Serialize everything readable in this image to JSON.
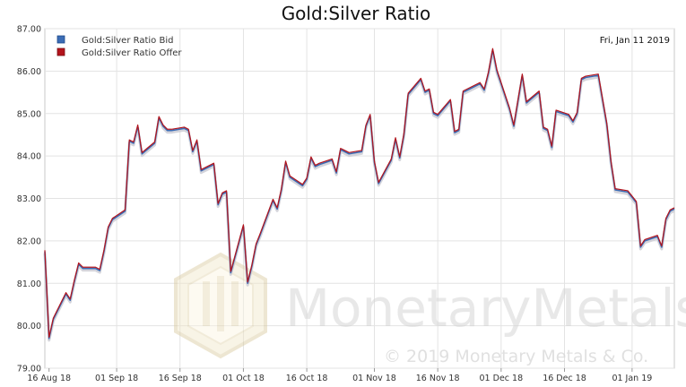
{
  "chart_data": {
    "type": "line",
    "title": "Gold:Silver Ratio",
    "date_label": "Fri, Jan 11 2019",
    "x_ticks": [
      "16 Aug 18",
      "01 Sep 18",
      "16 Sep 18",
      "01 Oct 18",
      "16 Oct 18",
      "01 Nov 18",
      "16 Nov 18",
      "01 Dec 18",
      "16 Dec 18",
      "01 Jan 19"
    ],
    "x_range": [
      "2018-08-15",
      "2019-01-11"
    ],
    "ylim": [
      79.0,
      87.0
    ],
    "y_ticks": [
      "79.00",
      "80.00",
      "81.00",
      "82.00",
      "83.00",
      "84.00",
      "85.00",
      "86.00",
      "87.00"
    ],
    "grid": true,
    "legend_position": "top-left",
    "series": [
      {
        "name": "Gold:Silver Ratio Bid",
        "color": "#3b6cb5",
        "x": [
          "2018-08-15",
          "2018-08-16",
          "2018-08-17",
          "2018-08-20",
          "2018-08-21",
          "2018-08-22",
          "2018-08-23",
          "2018-08-24",
          "2018-08-27",
          "2018-08-28",
          "2018-08-29",
          "2018-08-30",
          "2018-08-31",
          "2018-09-03",
          "2018-09-04",
          "2018-09-05",
          "2018-09-06",
          "2018-09-07",
          "2018-09-10",
          "2018-09-11",
          "2018-09-12",
          "2018-09-13",
          "2018-09-14",
          "2018-09-17",
          "2018-09-18",
          "2018-09-19",
          "2018-09-20",
          "2018-09-21",
          "2018-09-24",
          "2018-09-25",
          "2018-09-26",
          "2018-09-27",
          "2018-09-28",
          "2018-10-01",
          "2018-10-02",
          "2018-10-03",
          "2018-10-04",
          "2018-10-05",
          "2018-10-08",
          "2018-10-09",
          "2018-10-10",
          "2018-10-11",
          "2018-10-12",
          "2018-10-15",
          "2018-10-16",
          "2018-10-17",
          "2018-10-18",
          "2018-10-19",
          "2018-10-22",
          "2018-10-23",
          "2018-10-24",
          "2018-10-25",
          "2018-10-26",
          "2018-10-29",
          "2018-10-30",
          "2018-10-31",
          "2018-11-01",
          "2018-11-02",
          "2018-11-05",
          "2018-11-06",
          "2018-11-07",
          "2018-11-08",
          "2018-11-09",
          "2018-11-12",
          "2018-11-13",
          "2018-11-14",
          "2018-11-15",
          "2018-11-16",
          "2018-11-19",
          "2018-11-20",
          "2018-11-21",
          "2018-11-22",
          "2018-11-23",
          "2018-11-26",
          "2018-11-27",
          "2018-11-28",
          "2018-11-29",
          "2018-11-30",
          "2018-12-03",
          "2018-12-04",
          "2018-12-05",
          "2018-12-06",
          "2018-12-07",
          "2018-12-10",
          "2018-12-11",
          "2018-12-12",
          "2018-12-13",
          "2018-12-14",
          "2018-12-17",
          "2018-12-18",
          "2018-12-19",
          "2018-12-20",
          "2018-12-21",
          "2018-12-24",
          "2018-12-26",
          "2018-12-27",
          "2018-12-28",
          "2018-12-31",
          "2019-01-02",
          "2019-01-03",
          "2019-01-04",
          "2019-01-07",
          "2019-01-08",
          "2019-01-09",
          "2019-01-10",
          "2019-01-11"
        ],
        "values": [
          81.75,
          79.7,
          80.15,
          80.75,
          80.6,
          81.05,
          81.45,
          81.35,
          81.35,
          81.3,
          81.75,
          82.3,
          82.5,
          82.7,
          84.35,
          84.3,
          84.7,
          84.05,
          84.3,
          84.9,
          84.7,
          84.6,
          84.6,
          84.65,
          84.6,
          84.1,
          84.35,
          83.65,
          83.8,
          82.85,
          83.1,
          83.15,
          81.25,
          82.35,
          81.0,
          81.4,
          81.9,
          82.15,
          82.95,
          82.75,
          83.2,
          83.85,
          83.5,
          83.3,
          83.45,
          83.95,
          83.75,
          83.8,
          83.9,
          83.6,
          84.15,
          84.1,
          84.05,
          84.1,
          84.7,
          84.95,
          83.85,
          83.35,
          83.9,
          84.4,
          83.95,
          84.5,
          85.45,
          85.8,
          85.5,
          85.55,
          85.0,
          84.95,
          85.3,
          84.55,
          84.6,
          85.5,
          85.55,
          85.7,
          85.55,
          85.95,
          86.5,
          86.0,
          85.1,
          84.7,
          85.3,
          85.9,
          85.25,
          85.5,
          84.65,
          84.6,
          84.2,
          85.05,
          84.95,
          84.8,
          85.0,
          85.8,
          85.85,
          85.9,
          84.75,
          83.85,
          83.2,
          83.15,
          82.9,
          81.85,
          82.0,
          82.1,
          81.85,
          82.5,
          82.7,
          82.75
        ]
      },
      {
        "name": "Gold:Silver Ratio Offer",
        "color": "#b3141c",
        "x": [
          "2018-08-15",
          "2018-08-16",
          "2018-08-17",
          "2018-08-20",
          "2018-08-21",
          "2018-08-22",
          "2018-08-23",
          "2018-08-24",
          "2018-08-27",
          "2018-08-28",
          "2018-08-29",
          "2018-08-30",
          "2018-08-31",
          "2018-09-03",
          "2018-09-04",
          "2018-09-05",
          "2018-09-06",
          "2018-09-07",
          "2018-09-10",
          "2018-09-11",
          "2018-09-12",
          "2018-09-13",
          "2018-09-14",
          "2018-09-17",
          "2018-09-18",
          "2018-09-19",
          "2018-09-20",
          "2018-09-21",
          "2018-09-24",
          "2018-09-25",
          "2018-09-26",
          "2018-09-27",
          "2018-09-28",
          "2018-10-01",
          "2018-10-02",
          "2018-10-03",
          "2018-10-04",
          "2018-10-05",
          "2018-10-08",
          "2018-10-09",
          "2018-10-10",
          "2018-10-11",
          "2018-10-12",
          "2018-10-15",
          "2018-10-16",
          "2018-10-17",
          "2018-10-18",
          "2018-10-19",
          "2018-10-22",
          "2018-10-23",
          "2018-10-24",
          "2018-10-25",
          "2018-10-26",
          "2018-10-29",
          "2018-10-30",
          "2018-10-31",
          "2018-11-01",
          "2018-11-02",
          "2018-11-05",
          "2018-11-06",
          "2018-11-07",
          "2018-11-08",
          "2018-11-09",
          "2018-11-12",
          "2018-11-13",
          "2018-11-14",
          "2018-11-15",
          "2018-11-16",
          "2018-11-19",
          "2018-11-20",
          "2018-11-21",
          "2018-11-22",
          "2018-11-23",
          "2018-11-26",
          "2018-11-27",
          "2018-11-28",
          "2018-11-29",
          "2018-11-30",
          "2018-12-03",
          "2018-12-04",
          "2018-12-05",
          "2018-12-06",
          "2018-12-07",
          "2018-12-10",
          "2018-12-11",
          "2018-12-12",
          "2018-12-13",
          "2018-12-14",
          "2018-12-17",
          "2018-12-18",
          "2018-12-19",
          "2018-12-20",
          "2018-12-21",
          "2018-12-24",
          "2018-12-26",
          "2018-12-27",
          "2018-12-28",
          "2018-12-31",
          "2019-01-02",
          "2019-01-03",
          "2019-01-04",
          "2019-01-07",
          "2019-01-08",
          "2019-01-09",
          "2019-01-10",
          "2019-01-11"
        ],
        "values": [
          81.78,
          79.73,
          80.18,
          80.78,
          80.63,
          81.08,
          81.48,
          81.38,
          81.38,
          81.33,
          81.78,
          82.33,
          82.53,
          82.73,
          84.38,
          84.33,
          84.73,
          84.08,
          84.33,
          84.93,
          84.73,
          84.63,
          84.63,
          84.68,
          84.63,
          84.13,
          84.38,
          83.68,
          83.83,
          82.88,
          83.13,
          83.18,
          81.28,
          82.38,
          81.03,
          81.43,
          81.93,
          82.18,
          82.98,
          82.78,
          83.23,
          83.88,
          83.53,
          83.33,
          83.48,
          83.98,
          83.78,
          83.83,
          83.93,
          83.63,
          84.18,
          84.13,
          84.08,
          84.13,
          84.73,
          84.98,
          83.88,
          83.38,
          83.93,
          84.43,
          83.98,
          84.53,
          85.48,
          85.83,
          85.53,
          85.58,
          85.03,
          84.98,
          85.33,
          84.58,
          84.63,
          85.53,
          85.58,
          85.73,
          85.58,
          85.98,
          86.53,
          86.03,
          85.13,
          84.73,
          85.33,
          85.93,
          85.28,
          85.53,
          84.68,
          84.63,
          84.23,
          85.08,
          84.98,
          84.83,
          85.03,
          85.83,
          85.88,
          85.93,
          84.78,
          83.88,
          83.23,
          83.18,
          82.93,
          81.88,
          82.03,
          82.13,
          81.88,
          82.53,
          82.73,
          82.78
        ]
      }
    ],
    "watermark": {
      "text": "MonetaryMetals",
      "copyright": "© 2019 Monetary Metals & Co."
    }
  }
}
